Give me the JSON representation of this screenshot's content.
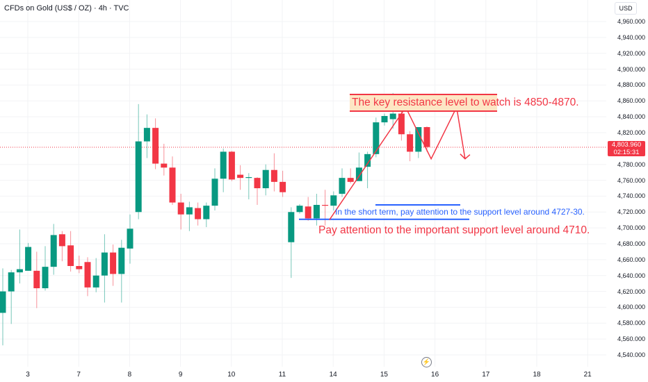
{
  "header": {
    "title": "CFDs on Gold (US$ / OZ) · 4h · TVC",
    "currency": "USD"
  },
  "price_label": {
    "price": "4,803.960",
    "countdown": "02:15:31"
  },
  "annotations": {
    "resistance": "The key resistance level to watch is 4850-4870.",
    "short_term": "In the short term, pay attention to the support level around 4727-30.",
    "support": "Pay attention to the important support level around 4710."
  },
  "icons": {
    "replay": "lightning-icon"
  },
  "colors": {
    "up": "#089981",
    "down": "#f23645",
    "annotation_blue": "#2962ff",
    "annotation_red": "#f23645"
  },
  "chart_data": {
    "type": "candlestick",
    "title": "CFDs on Gold (US$ / OZ) · 4h · TVC",
    "ylim": [
      4530,
      4980
    ],
    "y_ticks": [
      "4,960.000",
      "4,940.000",
      "4,920.000",
      "4,900.000",
      "4,880.000",
      "4,860.000",
      "4,840.000",
      "4,820.000",
      "4,780.000",
      "4,760.000",
      "4,740.000",
      "4,720.000",
      "4,700.000",
      "4,680.000",
      "4,660.000",
      "4,640.000",
      "4,620.000",
      "4,600.000",
      "4,580.000",
      "4,560.000",
      "4,540.000"
    ],
    "y_tick_values": [
      4960,
      4940,
      4920,
      4900,
      4880,
      4860,
      4840,
      4820,
      4780,
      4760,
      4740,
      4720,
      4700,
      4680,
      4660,
      4640,
      4620,
      4600,
      4580,
      4560,
      4540
    ],
    "x_ticks": [
      {
        "label": "3",
        "index": 3
      },
      {
        "label": "7",
        "index": 9
      },
      {
        "label": "8",
        "index": 15
      },
      {
        "label": "9",
        "index": 21
      },
      {
        "label": "10",
        "index": 27
      },
      {
        "label": "11",
        "index": 33
      },
      {
        "label": "14",
        "index": 39
      },
      {
        "label": "15",
        "index": 45
      },
      {
        "label": "16",
        "index": 51
      },
      {
        "label": "17",
        "index": 57
      },
      {
        "label": "18",
        "index": 63
      },
      {
        "label": "21",
        "index": 69
      }
    ],
    "last_price": 4803.96,
    "candles_ohlc": [
      [
        4593,
        4649,
        4552,
        4620
      ],
      [
        4620,
        4647,
        4579,
        4644
      ],
      [
        4644,
        4698,
        4630,
        4648
      ],
      [
        4646,
        4681,
        4646,
        4676
      ],
      [
        4646,
        4670,
        4599,
        4624
      ],
      [
        4624,
        4677,
        4621,
        4651
      ],
      [
        4651,
        4705,
        4641,
        4691
      ],
      [
        4692,
        4696,
        4658,
        4677
      ],
      [
        4678,
        4696,
        4645,
        4652
      ],
      [
        4652,
        4665,
        4643,
        4648
      ],
      [
        4657,
        4663,
        4614,
        4625
      ],
      [
        4625,
        4662,
        4619,
        4640
      ],
      [
        4640,
        4692,
        4606,
        4669
      ],
      [
        4669,
        4679,
        4627,
        4642
      ],
      [
        4642,
        4685,
        4606,
        4675
      ],
      [
        4674,
        4717,
        4655,
        4699
      ],
      [
        4720,
        4856,
        4711,
        4809
      ],
      [
        4809,
        4843,
        4788,
        4826
      ],
      [
        4826,
        4838,
        4774,
        4781
      ],
      [
        4781,
        4806,
        4766,
        4776
      ],
      [
        4776,
        4790,
        4729,
        4732
      ],
      [
        4732,
        4743,
        4698,
        4717
      ],
      [
        4717,
        4733,
        4696,
        4726
      ],
      [
        4725,
        4732,
        4703,
        4711
      ],
      [
        4711,
        4732,
        4701,
        4728
      ],
      [
        4728,
        4775,
        4722,
        4762
      ],
      [
        4762,
        4800,
        4745,
        4796
      ],
      [
        4796,
        4797,
        4759,
        4761
      ],
      [
        4767,
        4779,
        4748,
        4763
      ],
      [
        4763,
        4769,
        4736,
        4764
      ],
      [
        4763,
        4764,
        4729,
        4750
      ],
      [
        4750,
        4780,
        4741,
        4773
      ],
      [
        4773,
        4794,
        4746,
        4758
      ],
      [
        4758,
        4772,
        4739,
        4745
      ],
      [
        4682,
        4726,
        4637,
        4720
      ],
      [
        4720,
        4730,
        4718,
        4728
      ],
      [
        4727,
        4739,
        4709,
        4712
      ],
      [
        4712,
        4743,
        4703,
        4729
      ],
      [
        4729,
        4748,
        4703,
        4728
      ],
      [
        4728,
        4746,
        4722,
        4741
      ],
      [
        4743,
        4775,
        4739,
        4763
      ],
      [
        4763,
        4775,
        4756,
        4758
      ],
      [
        4759,
        4795,
        4759,
        4776
      ],
      [
        4777,
        4796,
        4750,
        4793
      ],
      [
        4793,
        4839,
        4789,
        4833
      ],
      [
        4833,
        4844,
        4829,
        4841
      ],
      [
        4837,
        4870,
        4825,
        4844
      ],
      [
        4844,
        4851,
        4810,
        4818
      ],
      [
        4818,
        4822,
        4784,
        4796
      ],
      [
        4796,
        4827,
        4788,
        4827
      ],
      [
        4827,
        4828,
        4796,
        4802
      ]
    ],
    "drawings": {
      "resistance_zone": [
        4850,
        4870
      ],
      "short_term_support": 4729,
      "important_support": 4710,
      "projection_path": [
        [
          38.5,
          4710
        ],
        [
          47.5,
          4852
        ],
        [
          50.5,
          4787
        ],
        [
          53.5,
          4852
        ],
        [
          54.5,
          4787
        ]
      ]
    }
  }
}
